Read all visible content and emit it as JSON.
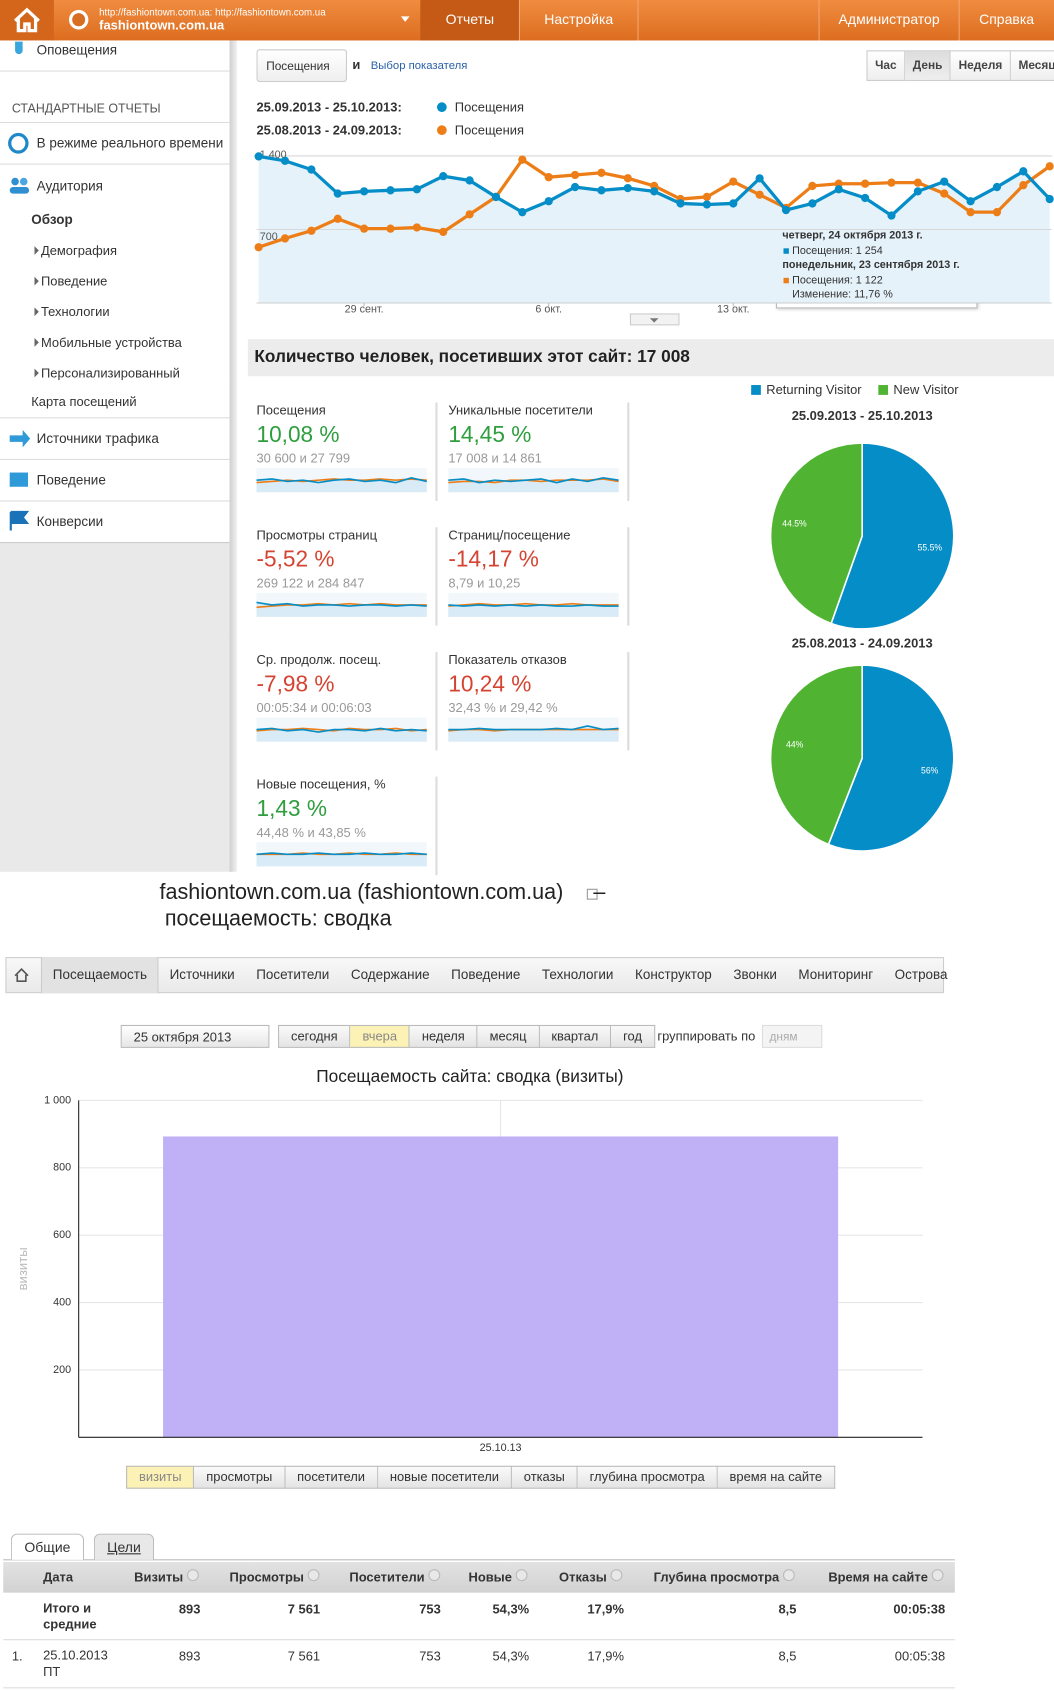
{
  "topbar": {
    "site_url": "http://fashiontown.com.ua: http://fashiontown.com.ua",
    "site_name": "fashiontown.com.ua",
    "tabs": [
      "Отчеты",
      "Настройка"
    ],
    "right_links": [
      "Администратор",
      "Справка"
    ]
  },
  "sidebar": {
    "top_item": "Оповещения",
    "section_title": "СТАНДАРТНЫЕ ОТЧЕТЫ",
    "realtime": "В режиме реального времени",
    "audience": {
      "label": "Аудитория",
      "overview": "Обзор",
      "subitems": [
        "Демография",
        "Поведение",
        "Технологии",
        "Мобильные устройства",
        "Персонализированный"
      ],
      "map": "Карта посещений"
    },
    "others": [
      "Источники трафика",
      "Поведение",
      "Конверсии"
    ]
  },
  "controls": {
    "metric_select": "Посещения",
    "conjunction": "и",
    "metric_link": "Выбор показателя",
    "periods": [
      "Час",
      "День",
      "Неделя",
      "Месяц"
    ],
    "active_period": "День"
  },
  "line_chart": {
    "type": "line",
    "categories": [
      null,
      null,
      null,
      null,
      "29 сент.",
      null,
      null,
      null,
      null,
      null,
      null,
      "6 окт.",
      null,
      null,
      null,
      null,
      null,
      null,
      "13 окт.",
      null,
      null,
      null,
      null,
      null,
      null,
      null,
      null,
      null,
      null,
      null,
      null
    ],
    "series": [
      {
        "range": "25.09.2013 - 25.10.2013:",
        "name": "Посещения",
        "color": "#058dc7",
        "values": [
          1396,
          1354,
          1271,
          1042,
          1063,
          1073,
          1083,
          1208,
          1167,
          1010,
          865,
          969,
          1104,
          1073,
          1094,
          1063,
          948,
          938,
          948,
          1187,
          885,
          948,
          1083,
          1000,
          833,
          1063,
          1156,
          969,
          1104,
          1254,
          990
        ]
      },
      {
        "range": "25.08.2013 - 24.09.2013:",
        "name": "Посещения",
        "color": "#ed7e17",
        "values": [
          531,
          615,
          688,
          802,
          708,
          708,
          719,
          677,
          844,
          1010,
          1365,
          1198,
          1219,
          1240,
          1188,
          1115,
          990,
          1010,
          1156,
          1031,
          906,
          1115,
          1136,
          1136,
          1146,
          1146,
          1042,
          865,
          865,
          1122,
          1302
        ]
      }
    ],
    "ylim": [
      0,
      1500
    ],
    "yticks": [
      {
        "value": 1400,
        "label": "1 400"
      },
      700
    ],
    "grid": true,
    "tooltip": {
      "date1": "четверг, 24 октября 2013 г.",
      "value1": "Посещения: 1 254",
      "date2": "понедельник, 23 сентября 2013 г.",
      "value2": "Посещения: 1 122",
      "change": "Изменение: 11,76 %"
    }
  },
  "summary": {
    "title": "Количество человек, посетивших этот сайт: 17 008",
    "spark_ylim": [
      0,
      10
    ],
    "metrics": [
      {
        "name": "Посещения",
        "change": "10,08 %",
        "comparison": "30 600 и 27 799",
        "color": "#2e9e3e",
        "current": [
          5,
          5.5,
          4.5,
          5,
          4,
          5,
          5.5,
          4.5,
          5,
          4,
          6,
          4.5
        ],
        "previous": [
          4,
          4.5,
          5,
          4.5,
          5,
          5.5,
          5,
          5,
          5.5,
          5,
          5.5,
          5
        ]
      },
      {
        "name": "Уникальные посетители",
        "change": "14,45 %",
        "comparison": "17 008 и 14 861",
        "color": "#2e9e3e",
        "current": [
          5,
          5.5,
          4,
          5,
          4.5,
          5,
          5.5,
          4,
          5.5,
          4.5,
          6,
          5
        ],
        "previous": [
          4,
          4.5,
          4.5,
          4,
          5,
          5,
          4.5,
          5,
          5,
          5,
          5.5,
          4.5
        ]
      },
      {
        "name": "Просмотры страниц",
        "change": "-5,52 %",
        "comparison": "269 122 и 284 847",
        "color": "#d54332",
        "current": [
          6,
          5,
          5.5,
          4.5,
          5,
          5,
          4.5,
          5,
          5,
          4.5,
          5,
          4.5
        ],
        "previous": [
          4,
          4.5,
          5,
          5,
          5.5,
          5,
          5.5,
          5,
          5.5,
          5,
          5,
          5
        ]
      },
      {
        "name": "Страниц/посещение",
        "change": "-14,17 %",
        "comparison": "8,79 и 10,25",
        "color": "#d54332",
        "current": [
          5,
          4.5,
          5,
          4.5,
          5,
          4.5,
          5,
          4.5,
          4.5,
          5,
          4.5,
          4.5
        ],
        "previous": [
          4.5,
          5,
          5.5,
          5,
          5,
          5.5,
          5,
          5,
          5.5,
          5,
          5,
          5
        ]
      },
      {
        "name": "Ср. продолж. посещ.",
        "change": "-7,98 %",
        "comparison": "00:05:34 и 00:06:03",
        "color": "#d54332",
        "current": [
          5,
          5.5,
          4.5,
          5,
          4,
          5,
          5,
          4.5,
          5.5,
          4.5,
          5,
          4.5
        ],
        "previous": [
          4.5,
          5,
          5,
          5.5,
          5,
          4.5,
          5.5,
          5,
          5,
          5.5,
          4.5,
          5
        ]
      },
      {
        "name": "Показатель отказов",
        "change": "10,24 %",
        "comparison": "32,43 % и 29,42 %",
        "color": "#d54332",
        "current": [
          5,
          5,
          5.5,
          5,
          5,
          5,
          5,
          5.5,
          5,
          6.5,
          5,
          5.5
        ],
        "previous": [
          4.5,
          5,
          5,
          4.5,
          5,
          5,
          5,
          5,
          5,
          5,
          5,
          5
        ]
      },
      {
        "name": "Новые посещения, %",
        "change": "1,43 %",
        "comparison": "44,48 % и 43,85 %",
        "color": "#2e9e3e",
        "current": [
          5,
          5.5,
          5,
          5,
          5.5,
          5,
          5,
          5.5,
          5,
          5,
          5.5,
          5
        ],
        "previous": [
          5,
          5,
          5,
          5.5,
          5,
          5,
          5.5,
          5,
          5,
          5.5,
          5,
          5
        ]
      }
    ]
  },
  "pies": {
    "legend": [
      {
        "name": "Returning Visitor",
        "color": "#058dc7"
      },
      {
        "name": "New Visitor",
        "color": "#50b432"
      }
    ],
    "charts": [
      {
        "type": "pie",
        "title": "25.09.2013 - 25.10.2013",
        "values": [
          55.5,
          44.5
        ],
        "value_labels": [
          "55.5%",
          "44.5%"
        ]
      },
      {
        "type": "pie",
        "title": "25.08.2013 - 24.09.2013",
        "values": [
          56,
          44
        ],
        "value_labels": [
          "56%",
          "44%"
        ]
      }
    ]
  },
  "report": {
    "title": "fashiontown.com.ua (fashiontown.com.ua)",
    "dash": "–",
    "subtitle": "посещаемость: сводка",
    "nav": [
      "Посещаемость",
      "Источники",
      "Посетители",
      "Содержание",
      "Поведение",
      "Технологии",
      "Конструктор",
      "Звонки",
      "Мониторинг",
      "Острова"
    ],
    "date": "25 октября 2013",
    "periods": [
      "сегодня",
      "вчера",
      "неделя",
      "месяц",
      "квартал",
      "год"
    ],
    "active_period": "вчера",
    "group_label": "группировать по",
    "group_value": "дням"
  },
  "bar_chart": {
    "type": "bar",
    "title": "Посещаемость сайта: сводка (визиты)",
    "y_label": "визиты",
    "categories": [
      "25.10.13"
    ],
    "values": [
      893
    ],
    "color": "#c0b1f6",
    "ylim": [
      0,
      1000
    ],
    "yticks": [
      200,
      400,
      600,
      800,
      {
        "value": 1000,
        "label": "1 000"
      }
    ],
    "grid": true
  },
  "metric_buttons": {
    "items": [
      "визиты",
      "просмотры",
      "посетители",
      "новые посетители",
      "отказы",
      "глубина просмотра",
      "время на сайте"
    ],
    "active": "визиты"
  },
  "table": {
    "tabs": [
      "Общие",
      "Цели"
    ],
    "columns": [
      "Дата",
      "Визиты",
      "Просмотры",
      "Посетители",
      "Новые",
      "Отказы",
      "Глубина просмотра",
      "Время на сайте"
    ],
    "rows": [
      {
        "label": "Итого и средние",
        "cells": [
          "893",
          "7 561",
          "753",
          "54,3%",
          "17,9%",
          "8,5",
          "00:05:38"
        ]
      },
      {
        "index": "1.",
        "label": "25.10.2013 ПТ",
        "cells": [
          "893",
          "7 561",
          "753",
          "54,3%",
          "17,9%",
          "8,5",
          "00:05:38"
        ]
      }
    ]
  }
}
